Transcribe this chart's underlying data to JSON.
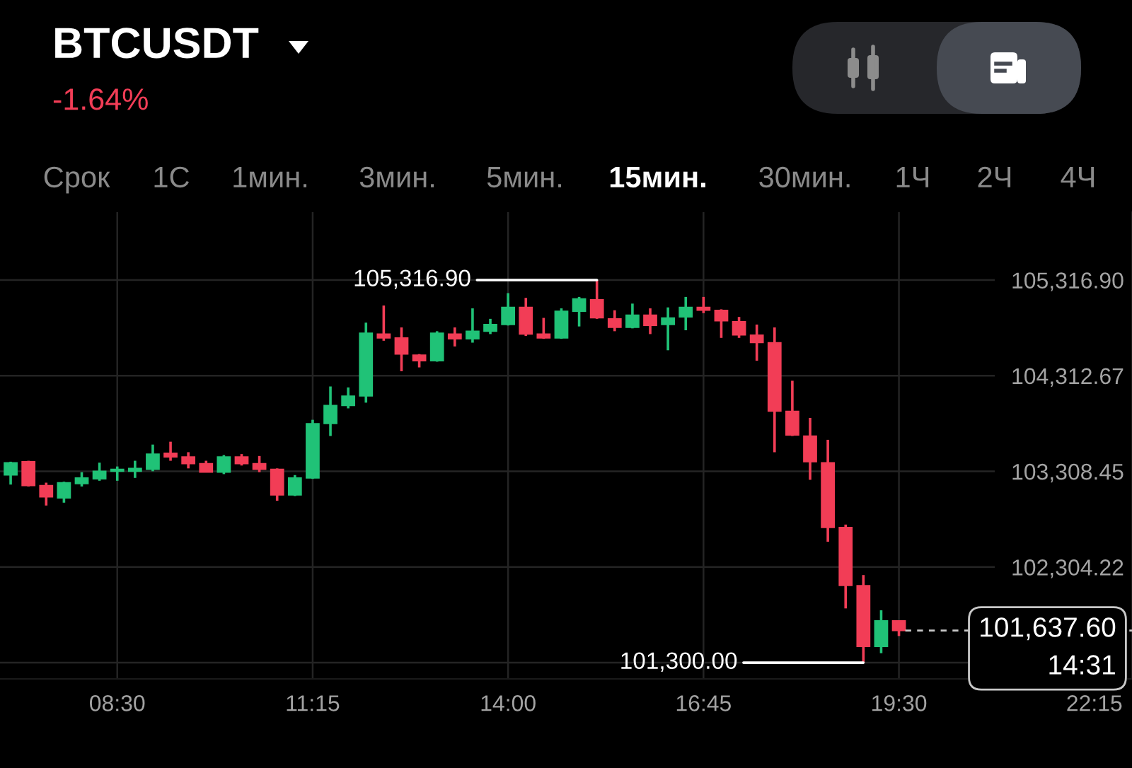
{
  "chart_data": {
    "type": "candlestick",
    "title": "BTCUSDT",
    "subtitle": "-1.64%",
    "x": [
      7,
      7.25,
      7.5,
      7.75,
      8,
      8.25,
      8.5,
      8.75,
      9,
      9.25,
      9.5,
      9.75,
      10,
      10.25,
      10.5,
      10.75,
      11,
      11.25,
      11.5,
      11.75,
      12,
      12.25,
      12.5,
      12.75,
      13,
      13.25,
      13.5,
      13.75,
      14,
      14.25,
      14.5,
      14.75,
      15,
      15.25,
      15.5,
      15.75,
      16,
      16.25,
      16.5,
      16.75,
      17,
      17.25,
      17.5,
      17.75,
      18,
      18.25,
      18.5,
      18.75,
      19,
      19.25,
      19.5
    ],
    "ohlc": [
      [
        103270,
        103410,
        103170,
        103400
      ],
      [
        103410,
        103420,
        103150,
        103160
      ],
      [
        103160,
        103190,
        102950,
        103040
      ],
      [
        103030,
        103200,
        102980,
        103190
      ],
      [
        103180,
        103300,
        103150,
        103240
      ],
      [
        103230,
        103400,
        103210,
        103310
      ],
      [
        103310,
        103360,
        103210,
        103330
      ],
      [
        103310,
        103420,
        103240,
        103340
      ],
      [
        103330,
        103590,
        103310,
        103490
      ],
      [
        103500,
        103620,
        103420,
        103460
      ],
      [
        103460,
        103510,
        103340,
        103390
      ],
      [
        103390,
        103420,
        103300,
        103300
      ],
      [
        103300,
        103480,
        103280,
        103460
      ],
      [
        103460,
        103490,
        103370,
        103390
      ],
      [
        103390,
        103470,
        103300,
        103330
      ],
      [
        103330,
        103340,
        103000,
        103060
      ],
      [
        103060,
        103270,
        103050,
        103240
      ],
      [
        103240,
        103850,
        103230,
        103810
      ],
      [
        103810,
        104200,
        103680,
        104000
      ],
      [
        104000,
        104190,
        103970,
        104100
      ],
      [
        104100,
        104870,
        104030,
        104760
      ],
      [
        104750,
        105050,
        104680,
        104710
      ],
      [
        104710,
        104820,
        104360,
        104540
      ],
      [
        104530,
        104540,
        104400,
        104470
      ],
      [
        104470,
        104780,
        104460,
        104760
      ],
      [
        104750,
        104820,
        104620,
        104700
      ],
      [
        104700,
        105020,
        104660,
        104780
      ],
      [
        104780,
        104910,
        104750,
        104850
      ],
      [
        104850,
        105180,
        104840,
        105030
      ],
      [
        105030,
        105130,
        104730,
        104750
      ],
      [
        104750,
        104920,
        104700,
        104710
      ],
      [
        104710,
        105020,
        104700,
        104990
      ],
      [
        104990,
        105140,
        104830,
        105120
      ],
      [
        105110,
        105316.9,
        104910,
        104920
      ],
      [
        104910,
        105000,
        104780,
        104820
      ],
      [
        104820,
        105070,
        104810,
        104950
      ],
      [
        104950,
        105020,
        104750,
        104840
      ],
      [
        104850,
        105030,
        104580,
        104920
      ],
      [
        104930,
        105140,
        104790,
        105030
      ],
      [
        105030,
        105140,
        104970,
        105000
      ],
      [
        105000,
        105010,
        104710,
        104890
      ],
      [
        104880,
        104930,
        104710,
        104740
      ],
      [
        104740,
        104850,
        104470,
        104660
      ],
      [
        104660,
        104820,
        103510,
        103940
      ],
      [
        103940,
        104260,
        103680,
        103690
      ],
      [
        103680,
        103870,
        103220,
        103410
      ],
      [
        103400,
        103640,
        102570,
        102720
      ],
      [
        102720,
        102750,
        101870,
        102110
      ],
      [
        102110,
        102220,
        101300,
        101470
      ],
      [
        101470,
        101850,
        101400,
        101740
      ],
      [
        101740,
        101740,
        101580,
        101637.6
      ]
    ],
    "colors": [
      "#20c277",
      "#f23d56",
      "#f23d56",
      "#20c277",
      "#20c277",
      "#20c277",
      "#20c277",
      "#20c277",
      "#20c277",
      "#f23d56",
      "#f23d56",
      "#f23d56",
      "#20c277",
      "#f23d56",
      "#f23d56",
      "#f23d56",
      "#20c277",
      "#20c277",
      "#20c277",
      "#20c277",
      "#20c277",
      "#f23d56",
      "#f23d56",
      "#f23d56",
      "#20c277",
      "#f23d56",
      "#20c277",
      "#20c277",
      "#20c277",
      "#f23d56",
      "#f23d56",
      "#20c277",
      "#20c277",
      "#f23d56",
      "#f23d56",
      "#20c277",
      "#f23d56",
      "#20c277",
      "#20c277",
      "#f23d56",
      "#f23d56",
      "#f23d56",
      "#f23d56",
      "#f23d56",
      "#f23d56",
      "#f23d56",
      "#f23d56",
      "#f23d56",
      "#f23d56",
      "#20c277",
      "#f23d56"
    ],
    "xlim": [
      6.85,
      22.78
    ],
    "ylim": [
      101130,
      106030
    ],
    "xticks": [
      {
        "value": 8.5,
        "label": "08:30"
      },
      {
        "value": 11.25,
        "label": "11:15"
      },
      {
        "value": 14,
        "label": "14:00"
      },
      {
        "value": 16.75,
        "label": "16:45"
      },
      {
        "value": 19.5,
        "label": "19:30"
      },
      {
        "value": 22.25,
        "label": "22:15"
      }
    ],
    "yticks": [
      {
        "value": 101300,
        "label": null
      },
      {
        "value": 102304.22,
        "label": "102,304.22"
      },
      {
        "value": 103308.45,
        "label": "103,308.45"
      },
      {
        "value": 104312.67,
        "label": "104,312.67"
      },
      {
        "value": 105316.9,
        "label": "105,316.90"
      }
    ],
    "grid": true,
    "ref_lines": [
      {
        "axis": "y",
        "value": 101637.6,
        "label": "101,637.60\n14:31",
        "color": "#c8c8c8",
        "line_style": "dashed"
      }
    ],
    "annotations": [
      "Срок",
      "1С",
      "1мин.",
      "3мин.",
      "5мин.",
      "15мин.",
      "30мин.",
      "1Ч",
      "2Ч",
      "4Ч",
      {
        "text": "105,316.90",
        "x": 15.25,
        "y": 105316.9
      },
      {
        "text": "101,300.00",
        "x": 19.0,
        "y": 101300
      }
    ]
  }
}
